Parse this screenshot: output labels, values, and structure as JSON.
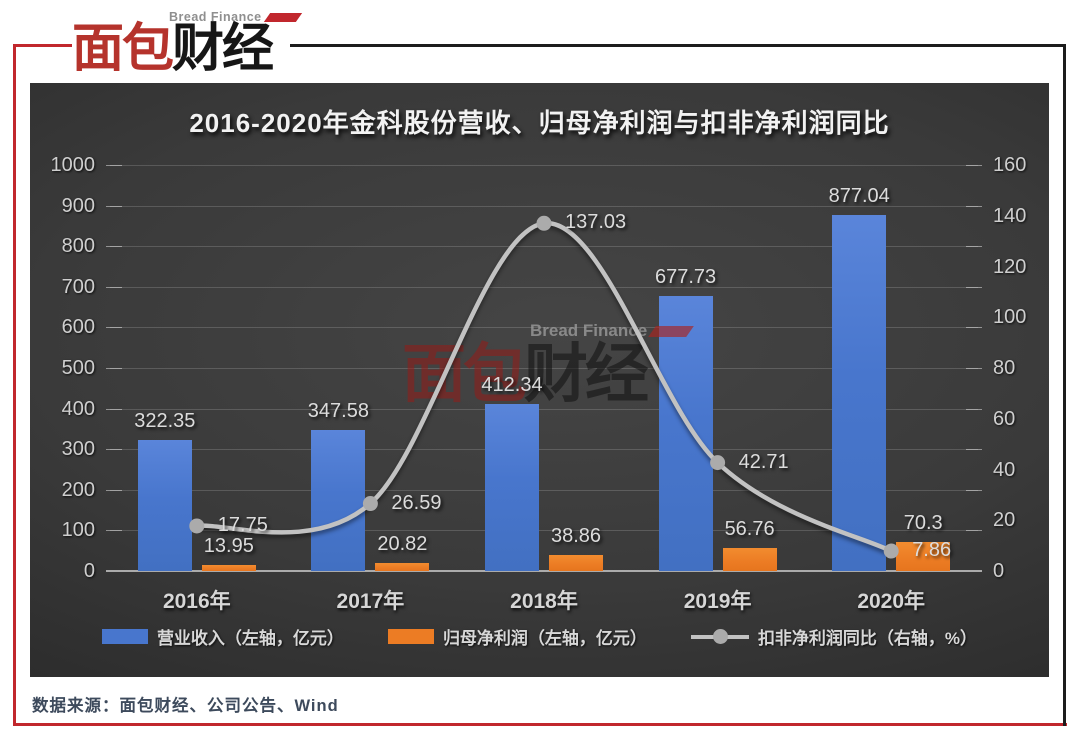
{
  "logo": {
    "brand_en": "Bread Finance",
    "brand_cn_red": "面包",
    "brand_cn_black": "财经"
  },
  "watermark": {
    "brand_en": "Bread Finance",
    "brand_cn_red": "面包",
    "brand_cn_black": "财经"
  },
  "footer": {
    "source_note": "数据来源：面包财经、公司公告、Wind"
  },
  "colors": {
    "frame_red": "#c1272d",
    "frame_black": "#1c1c1c",
    "bar_blue": "#4876cd",
    "bar_orange": "#ec7c24",
    "line_gray": "#c2c2c2",
    "marker_gray": "#ababab",
    "panel_bg": "#3a3a3a"
  },
  "chart_data": {
    "type": "bar",
    "subtype": "combo-bar-line-dual-axis",
    "title": "2016-2020年金科股份营收、归母净利润与扣非净利润同比",
    "categories": [
      "2016年",
      "2017年",
      "2018年",
      "2019年",
      "2020年"
    ],
    "series": [
      {
        "name": "营业收入（左轴，亿元）",
        "type": "bar",
        "axis": "left",
        "color_key": "bar_blue",
        "values": [
          322.35,
          347.58,
          412.34,
          677.73,
          877.04
        ]
      },
      {
        "name": "归母净利润（左轴，亿元）",
        "type": "bar",
        "axis": "left",
        "color_key": "bar_orange",
        "values": [
          13.95,
          20.82,
          38.86,
          56.76,
          70.3
        ]
      },
      {
        "name": "扣非净利润同比（右轴，%）",
        "type": "line",
        "axis": "right",
        "color_key": "line_gray",
        "values": [
          17.75,
          26.59,
          137.03,
          42.71,
          7.86
        ]
      }
    ],
    "left_axis": {
      "min": 0,
      "max": 1000,
      "step": 100
    },
    "right_axis": {
      "min": 0,
      "max": 160,
      "step": 20
    },
    "grid": true,
    "legend_position": "bottom",
    "data_labels": true
  }
}
